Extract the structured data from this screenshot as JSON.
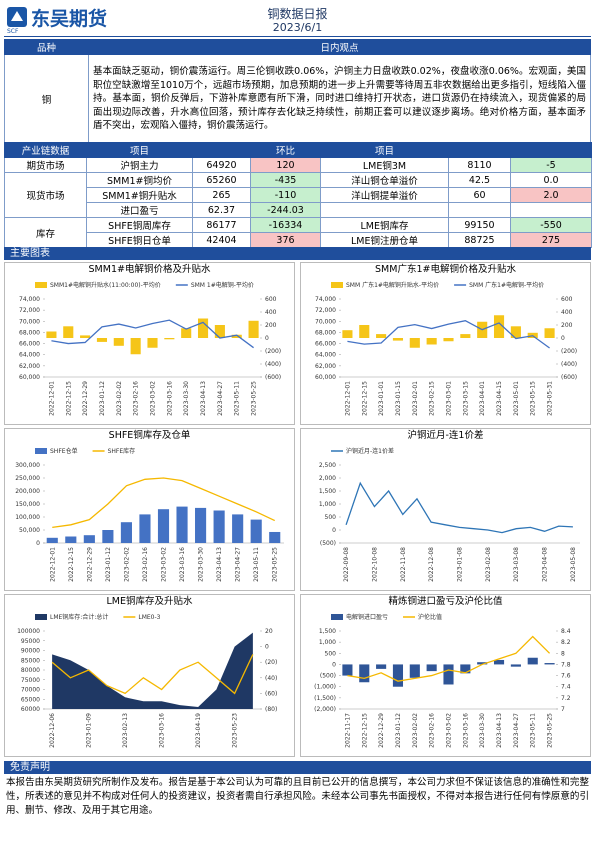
{
  "header": {
    "logo": "东吴期货",
    "logo_sub": "SCF",
    "title": "铜数据日报",
    "date": "2023/6/1"
  },
  "view": {
    "col1": "品种",
    "col2": "日内观点",
    "variety": "铜",
    "text": "基本面缺乏驱动，铜价震荡运行。周三伦铜收跌0.06%，沪铜主力日盘收跌0.02%，夜盘收涨0.06%。宏观面，美国职位空缺激增至1010万个，远超市场预期，加息预期的进一步上升需要等待周五非农数据给出更多指引，短线陷入僵持。基本面，铜价反弹后，下游补库意愿有所下滑，同时进口维持打开状态，进口货源仍在持续流入，现货偏紧的局面出现边际改善，升水高位回落，预计库存去化缺乏持续性，前期正套可以建议逐步离场。绝对价格方面，基本面矛盾不突出，宏观陷入僵持，铜价震荡运行。"
  },
  "chain": {
    "headers": [
      "产业链数据",
      "项目",
      "环比",
      "项目"
    ],
    "groups": [
      {
        "name": "期货市场",
        "rows": [
          [
            "沪铜主力",
            64920,
            120,
            "LME铜3M",
            8110,
            -5
          ]
        ]
      },
      {
        "name": "现货市场",
        "rows": [
          [
            "SMM1#铜均价",
            65260,
            -435,
            "洋山铜仓单溢价",
            42.5,
            "0.0"
          ],
          [
            "SMM1#铜升贴水",
            265,
            -110,
            "洋山铜提单溢价",
            60,
            "2.0"
          ],
          [
            "进口盈亏",
            62.37,
            -244.03
          ]
        ]
      },
      {
        "name": "库存",
        "rows": [
          [
            "SHFE铜周库存",
            86177,
            -16334,
            "LME铜库存",
            99150,
            -550
          ],
          [
            "SHFE铜日仓单",
            42404,
            376,
            "LME铜注册仓单",
            88725,
            275
          ]
        ]
      }
    ]
  },
  "sections": {
    "charts": "主要图表",
    "disclaimer": "免责声明"
  },
  "disclaimer": "本报告由东吴期货研究所制作及发布。报告是基于本公司认为可靠的且目前已公开的信息撰写，本公司力求但不保证该信息的准确性和完整性，所表述的意见并不构成对任何人的投资建议，投资者需自行承担风险。未经本公司事先书面授权，不得对本报告进行任何有悖原意的引用、删节、修改、及用于其它用途。",
  "chart_data": [
    {
      "type": "combo",
      "title": "SMM1#电解铜价格及升贴水",
      "categories": [
        "2022-12-01",
        "2022-12-15",
        "2022-12-29",
        "2023-01-12",
        "2023-02-02",
        "2023-02-16",
        "2023-03-02",
        "2023-03-16",
        "2023-03-30",
        "2023-04-13",
        "2023-04-27",
        "2023-05-11",
        "2023-05-25"
      ],
      "series": [
        {
          "name": "SMM1#电解铜升贴水(11:00:00)-平均价",
          "color": "#f5c518",
          "kind": "bar",
          "axis": "y2",
          "values": [
            100,
            180,
            40,
            -60,
            -120,
            -250,
            -150,
            -20,
            150,
            300,
            200,
            50,
            265
          ]
        },
        {
          "name": "SMM 1#电解铜-平均价",
          "color": "#4472c4",
          "kind": "line",
          "values": [
            66500,
            66000,
            66200,
            69000,
            69500,
            68800,
            69600,
            70200,
            68600,
            69800,
            67000,
            67500,
            65260
          ]
        }
      ],
      "ylim": [
        60000,
        74000
      ],
      "yticks": [
        {
          "value": 60000,
          "label": "60,000"
        },
        {
          "value": 62000,
          "label": "62,000"
        },
        {
          "value": 64000,
          "label": "64,000"
        },
        {
          "value": 66000,
          "label": "66,000"
        },
        {
          "value": 68000,
          "label": "68,000"
        },
        {
          "value": 70000,
          "label": "70,000"
        },
        {
          "value": 72000,
          "label": "72,000"
        },
        {
          "value": 74000,
          "label": "74,000"
        }
      ],
      "y2lim": [
        -600,
        600
      ],
      "y2ticks": [
        {
          "value": -600,
          "label": "(600)"
        },
        {
          "value": -400,
          "label": "(400)"
        },
        {
          "value": -200,
          "label": "(200)"
        },
        0,
        200,
        400,
        600
      ]
    },
    {
      "type": "combo",
      "title": "SMM广东1#电解铜价格及升贴水",
      "categories": [
        "2022-12-01",
        "2022-12-15",
        "2023-01-01",
        "2023-01-15",
        "2023-02-01",
        "2023-02-15",
        "2023-03-01",
        "2023-03-15",
        "2023-04-01",
        "2023-04-15",
        "2023-05-01",
        "2023-05-15",
        "2023-05-31"
      ],
      "series": [
        {
          "name": "SMM 广东1#电解铜升贴水-平均价",
          "color": "#f5c518",
          "kind": "bar",
          "axis": "y2",
          "values": [
            120,
            200,
            60,
            -40,
            -150,
            -100,
            -50,
            60,
            250,
            350,
            180,
            80,
            150
          ]
        },
        {
          "name": "SMM 广东1#电解铜-平均价",
          "color": "#4472c4",
          "kind": "line",
          "values": [
            66400,
            65900,
            66100,
            68900,
            69400,
            68700,
            69500,
            70100,
            68500,
            69700,
            66900,
            67400,
            65200
          ]
        }
      ],
      "ylim": [
        60000,
        74000
      ],
      "yticks": [
        {
          "value": 60000,
          "label": "60,000"
        },
        {
          "value": 62000,
          "label": "62,000"
        },
        {
          "value": 64000,
          "label": "64,000"
        },
        {
          "value": 66000,
          "label": "66,000"
        },
        {
          "value": 68000,
          "label": "68,000"
        },
        {
          "value": 70000,
          "label": "70,000"
        },
        {
          "value": 72000,
          "label": "72,000"
        },
        {
          "value": 74000,
          "label": "74,000"
        }
      ],
      "y2lim": [
        -600,
        600
      ],
      "y2ticks": [
        {
          "value": -600,
          "label": "(600)"
        },
        {
          "value": -400,
          "label": "(400)"
        },
        {
          "value": -200,
          "label": "(200)"
        },
        0,
        200,
        400,
        600
      ]
    },
    {
      "type": "combo",
      "title": "SHFE铜库存及仓单",
      "categories": [
        "2022-12-01",
        "2022-12-15",
        "2022-12-29",
        "2023-01-12",
        "2023-02-02",
        "2023-02-16",
        "2023-03-02",
        "2023-03-16",
        "2023-03-30",
        "2023-04-13",
        "2023-04-27",
        "2023-05-11",
        "2023-05-25"
      ],
      "series": [
        {
          "name": "SHFE仓单",
          "color": "#4472c4",
          "kind": "bar",
          "values": [
            20000,
            25000,
            30000,
            50000,
            80000,
            110000,
            130000,
            140000,
            135000,
            125000,
            110000,
            90000,
            42404
          ]
        },
        {
          "name": "SHFE库存",
          "color": "#f5b800",
          "kind": "line",
          "values": [
            60000,
            70000,
            90000,
            150000,
            220000,
            245000,
            250000,
            240000,
            210000,
            180000,
            150000,
            120000,
            86177
          ]
        }
      ],
      "ylim": [
        0,
        300000
      ],
      "yticks": [
        0,
        {
          "value": 50000,
          "label": "50,000"
        },
        {
          "value": 100000,
          "label": "100,000"
        },
        {
          "value": 150000,
          "label": "150,000"
        },
        {
          "value": 200000,
          "label": "200,000"
        },
        {
          "value": 250000,
          "label": "250,000"
        },
        {
          "value": 300000,
          "label": "300,000"
        }
      ]
    },
    {
      "type": "combo",
      "title": "沪铜近月-连1价差",
      "categories": [
        "2022-09-08",
        null,
        "2022-10-08",
        null,
        "2022-11-08",
        null,
        "2022-12-08",
        null,
        "2023-01-08",
        null,
        "2023-02-08",
        null,
        "2023-03-08",
        null,
        "2023-04-08",
        null,
        "2023-05-08"
      ],
      "series": [
        {
          "name": "沪铜近月-连1价差",
          "color": "#2e75b6",
          "kind": "line",
          "values": [
            200,
            1800,
            900,
            1500,
            600,
            1200,
            300,
            200,
            100,
            50,
            0,
            -100,
            50,
            100,
            -50,
            150,
            120
          ]
        }
      ],
      "ylim": [
        -500,
        2500
      ],
      "yticks": [
        {
          "value": -500,
          "label": "(500)"
        },
        0,
        500,
        {
          "value": 1000,
          "label": "1,000"
        },
        {
          "value": 1500,
          "label": "1,500"
        },
        {
          "value": 2000,
          "label": "2,000"
        },
        {
          "value": 2500,
          "label": "2,500"
        }
      ]
    },
    {
      "type": "combo",
      "title": "LME铜库存及升贴水",
      "categories": [
        "2022-12-06",
        null,
        "2023-01-09",
        null,
        "2023-02-13",
        null,
        "2023-03-16",
        null,
        "2023-04-19",
        null,
        "2023-05-23",
        null
      ],
      "series": [
        {
          "name": "LME铜库存:合计:总计",
          "color": "#1f3864",
          "kind": "area",
          "values": [
            88000,
            85000,
            80000,
            72000,
            66000,
            64000,
            64000,
            62000,
            61000,
            70000,
            92000,
            99150
          ]
        },
        {
          "name": "LME0-3",
          "color": "#f5b800",
          "kind": "line",
          "axis": "y2",
          "values": [
            -20,
            -40,
            -30,
            -50,
            -60,
            -40,
            -55,
            -30,
            -20,
            -40,
            -60,
            -10
          ]
        }
      ],
      "ylim": [
        60000,
        100000
      ],
      "yticks": [
        60000,
        65000,
        70000,
        75000,
        80000,
        85000,
        90000,
        95000,
        100000
      ],
      "y2lim": [
        -80,
        20
      ],
      "y2ticks": [
        {
          "value": -80,
          "label": "(80)"
        },
        {
          "value": -60,
          "label": "(60)"
        },
        {
          "value": -40,
          "label": "(40)"
        },
        {
          "value": -20,
          "label": "(20)"
        },
        0,
        20
      ]
    },
    {
      "type": "combo",
      "title": "精炼铜进口盈亏及沪伦比值",
      "categories": [
        "2022-11-17",
        "2022-12-15",
        "2022-12-29",
        "2023-01-12",
        "2023-02-02",
        "2023-02-16",
        "2023-03-02",
        "2023-03-16",
        "2023-03-30",
        "2023-04-13",
        "2023-04-27",
        "2023-05-11",
        "2023-05-25"
      ],
      "series": [
        {
          "name": "电解铜进口盈亏",
          "color": "#2f5597",
          "kind": "bar",
          "values": [
            -500,
            -800,
            -200,
            -1000,
            -600,
            -300,
            -900,
            -400,
            100,
            200,
            -100,
            300,
            62
          ]
        },
        {
          "name": "沪伦比值",
          "color": "#f5b800",
          "kind": "line",
          "axis": "y2",
          "values": [
            7.6,
            7.55,
            7.65,
            7.5,
            7.55,
            7.6,
            7.7,
            7.65,
            7.8,
            7.9,
            8.0,
            8.3,
            8.0
          ]
        }
      ],
      "ylim": [
        -2000,
        1500
      ],
      "yticks": [
        {
          "value": -2000,
          "label": "(2,000)"
        },
        {
          "value": -1500,
          "label": "(1,500)"
        },
        {
          "value": -1000,
          "label": "(1,000)"
        },
        {
          "value": -500,
          "label": "(500)"
        },
        0,
        500,
        {
          "value": 1000,
          "label": "1,000"
        },
        {
          "value": 1500,
          "label": "1,500"
        }
      ],
      "y2lim": [
        7,
        8.4
      ],
      "y2ticks": [
        7,
        7.2,
        7.4,
        7.6,
        7.8,
        8,
        8.2,
        8.4
      ]
    }
  ]
}
